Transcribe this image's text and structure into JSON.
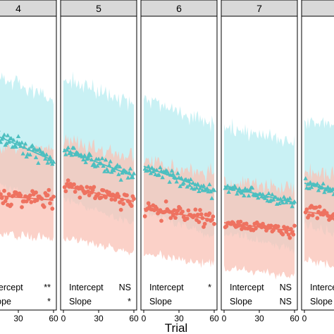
{
  "chart_data": {
    "type": "scatter",
    "xlabel": "Trial",
    "xlim": [
      0,
      60
    ],
    "xticks": [
      0,
      30,
      60
    ],
    "ylim": [
      0,
      1
    ],
    "colors": {
      "teal": "#4dbfc0",
      "teal_band": "#bfeff2",
      "salmon": "#ee7260",
      "salmon_band": "#f9c2b5",
      "overlap_band": "#dcc8c0",
      "strip": "#d9d9d9",
      "axis": "#000000"
    },
    "panels": [
      {
        "strip": "4",
        "stats": [
          {
            "label": "Intercept",
            "sig": "**"
          },
          {
            "label": "Slope",
            "sig": "*"
          }
        ],
        "series": [
          {
            "marker": "triangle",
            "color": "teal",
            "start": 0.38,
            "end": 0.16,
            "band_top": 0.82,
            "band_bottom": 0.05,
            "noise": 0.08
          },
          {
            "marker": "circle",
            "color": "salmon",
            "start": -0.08,
            "end": -0.12,
            "band_top": 0.28,
            "band_bottom": -0.35,
            "noise": 0.09
          }
        ]
      },
      {
        "strip": "5",
        "stats": [
          {
            "label": "Intercept",
            "sig": "NS"
          },
          {
            "label": "Slope",
            "sig": "*"
          }
        ],
        "series": [
          {
            "marker": "triangle",
            "color": "teal",
            "start": 0.24,
            "end": 0.05,
            "band_top": 0.75,
            "band_bottom": -0.1,
            "noise": 0.07
          },
          {
            "marker": "circle",
            "color": "salmon",
            "start": -0.02,
            "end": -0.13,
            "band_top": 0.3,
            "band_bottom": -0.38,
            "noise": 0.09
          }
        ]
      },
      {
        "strip": "6",
        "stats": [
          {
            "label": "Intercept",
            "sig": "*"
          },
          {
            "label": "Slope",
            "sig": ""
          }
        ],
        "series": [
          {
            "marker": "triangle",
            "color": "teal",
            "start": 0.12,
            "end": -0.06,
            "band_top": 0.6,
            "band_bottom": -0.2,
            "noise": 0.07
          },
          {
            "marker": "circle",
            "color": "salmon",
            "start": -0.18,
            "end": -0.26,
            "band_top": 0.15,
            "band_bottom": -0.5,
            "noise": 0.08
          }
        ]
      },
      {
        "strip": "7",
        "stats": [
          {
            "label": "Intercept",
            "sig": "NS"
          },
          {
            "label": "Slope",
            "sig": "NS"
          }
        ],
        "series": [
          {
            "marker": "triangle",
            "color": "teal",
            "start": -0.02,
            "end": -0.14,
            "band_top": 0.4,
            "band_bottom": -0.35,
            "noise": 0.06
          },
          {
            "marker": "circle",
            "color": "salmon",
            "start": -0.28,
            "end": -0.34,
            "band_top": 0.02,
            "band_bottom": -0.6,
            "noise": 0.07
          }
        ]
      },
      {
        "strip": "",
        "stats": [
          {
            "label": "Intercept",
            "sig": ""
          },
          {
            "label": "Slope",
            "sig": ""
          }
        ],
        "series": [
          {
            "marker": "triangle",
            "color": "teal",
            "start": 0.0,
            "end": -0.12,
            "band_top": 0.45,
            "band_bottom": -0.3,
            "noise": 0.06
          },
          {
            "marker": "circle",
            "color": "salmon",
            "start": -0.2,
            "end": -0.28,
            "band_top": 0.1,
            "band_bottom": -0.55,
            "noise": 0.07
          }
        ]
      }
    ]
  }
}
